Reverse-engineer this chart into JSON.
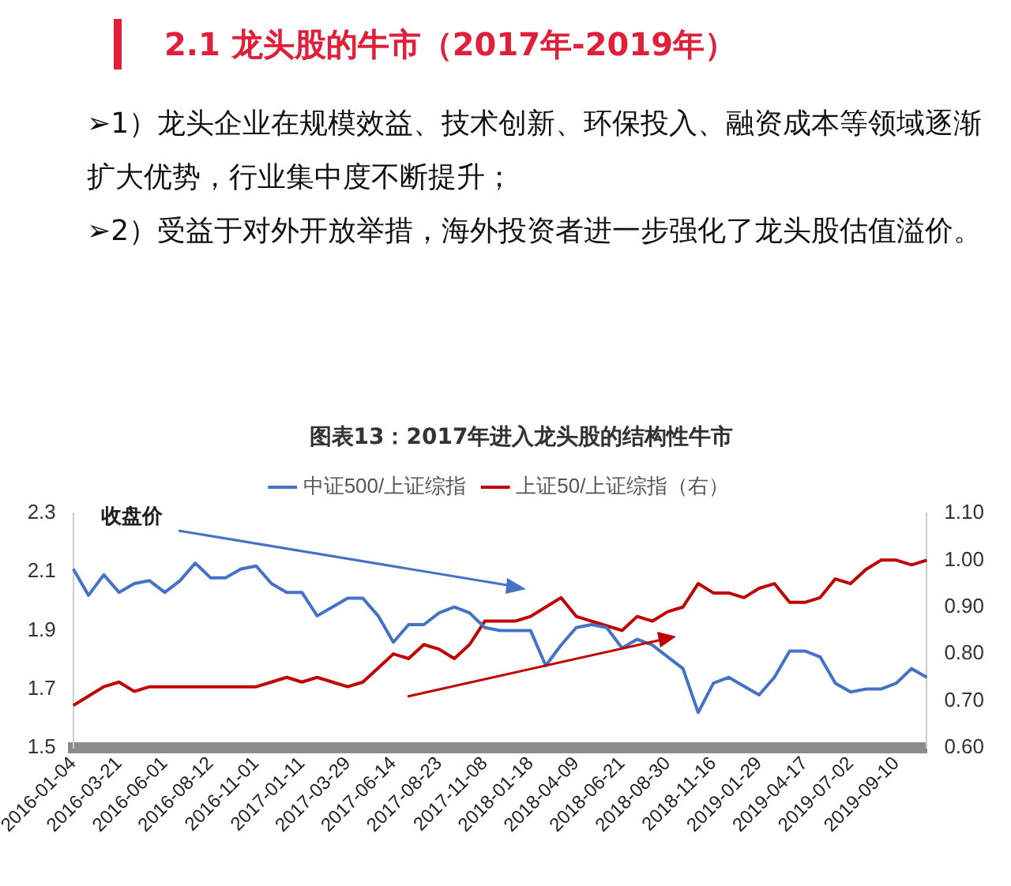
{
  "chart_data": {
    "type": "line",
    "title": "图表13：2017年进入龙头股的结构性牛市",
    "ylabel": "收盘价",
    "annotations": [
      "2.1 龙头股的牛市（2017年-2019年）",
      "➢1）龙头企业在规模效益、技术创新、环保投入、融资成本等领域逐渐扩大优势，行业集中度不断提升；",
      "➢2）受益于对外开放举措，海外投资者进一步强化了龙头股估值溢价。"
    ],
    "categories": [
      "2016-01-04",
      null,
      null,
      "2016-03-21",
      null,
      null,
      "2016-06-01",
      null,
      null,
      "2016-08-12",
      null,
      null,
      "2016-11-01",
      null,
      null,
      "2017-01-11",
      null,
      null,
      "2017-03-29",
      null,
      null,
      "2017-06-14",
      null,
      null,
      "2017-08-23",
      null,
      null,
      "2017-11-08",
      null,
      null,
      "2018-01-18",
      null,
      null,
      "2018-04-09",
      null,
      null,
      "2018-06-21",
      null,
      null,
      "2018-08-30",
      null,
      null,
      "2018-11-16",
      null,
      null,
      "2019-01-29",
      null,
      null,
      "2019-04-17",
      null,
      null,
      "2019-07-02",
      null,
      null,
      "2019-09-10",
      null,
      null
    ],
    "series": [
      {
        "name": "中证500/上证综指",
        "color": "#4472c4",
        "values": [
          2.11,
          2.02,
          2.09,
          2.03,
          2.06,
          2.07,
          2.03,
          2.07,
          2.13,
          2.08,
          2.08,
          2.11,
          2.12,
          2.06,
          2.03,
          2.03,
          1.95,
          1.98,
          2.01,
          2.01,
          1.95,
          1.86,
          1.92,
          1.92,
          1.96,
          1.98,
          1.96,
          1.91,
          1.9,
          1.9,
          1.9,
          1.78,
          1.85,
          1.91,
          1.92,
          1.91,
          1.84,
          1.87,
          1.85,
          1.81,
          1.77,
          1.62,
          1.72,
          1.74,
          1.71,
          1.68,
          1.74,
          1.83,
          1.83,
          1.81,
          1.72,
          1.69,
          1.7,
          1.7,
          1.72,
          1.77,
          1.74
        ]
      },
      {
        "name": "上证50/上证综指（右）",
        "color": "#c00000",
        "axis": "y2",
        "values": [
          0.69,
          0.71,
          0.73,
          0.74,
          0.72,
          0.73,
          0.73,
          0.73,
          0.73,
          0.73,
          0.73,
          0.73,
          0.73,
          0.74,
          0.75,
          0.74,
          0.75,
          0.74,
          0.73,
          0.74,
          0.77,
          0.8,
          0.79,
          0.82,
          0.81,
          0.79,
          0.82,
          0.87,
          0.87,
          0.87,
          0.88,
          0.9,
          0.92,
          0.88,
          0.87,
          0.86,
          0.85,
          0.88,
          0.87,
          0.89,
          0.9,
          0.95,
          0.93,
          0.93,
          0.92,
          0.94,
          0.95,
          0.91,
          0.91,
          0.92,
          0.96,
          0.95,
          0.98,
          1.0,
          1.0,
          0.99,
          1.0
        ]
      }
    ],
    "ylim": [
      1.5,
      2.3
    ],
    "yticks": [
      1.5,
      1.7,
      1.9,
      2.1,
      2.3
    ],
    "y2lim": [
      0.6,
      1.1
    ],
    "y2ticks": [
      {
        "value": 0.6,
        "label": "0.60"
      },
      {
        "value": 0.7,
        "label": "0.70"
      },
      {
        "value": 0.8,
        "label": "0.80"
      },
      {
        "value": 0.9,
        "label": "0.90"
      },
      {
        "value": 1.0,
        "label": "1.00"
      },
      {
        "value": 1.1,
        "label": "1.10"
      }
    ],
    "grid": false,
    "legend": "top",
    "marker": "none",
    "line_style": "solid"
  }
}
